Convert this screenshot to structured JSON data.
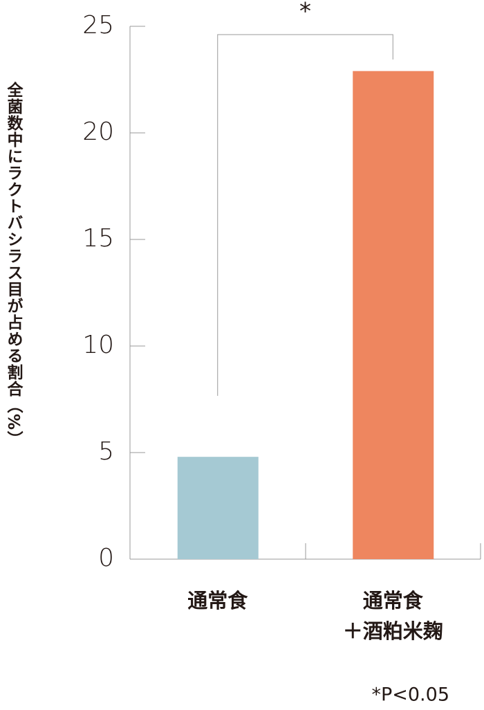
{
  "chart_data": {
    "type": "bar",
    "ylabel": "全菌数中にラクトバシラス目が占める割合（%）",
    "categories": [
      [
        "通常食"
      ],
      [
        "通常食",
        "＋酒粕米麹"
      ]
    ],
    "values": [
      4.8,
      22.9
    ],
    "colors": [
      "#a5c9d3",
      "#ee865f"
    ],
    "ylim": [
      0,
      25
    ],
    "yticks": [
      0,
      5,
      10,
      15,
      20,
      25
    ],
    "significance": "*",
    "note": "*P<0.05"
  }
}
